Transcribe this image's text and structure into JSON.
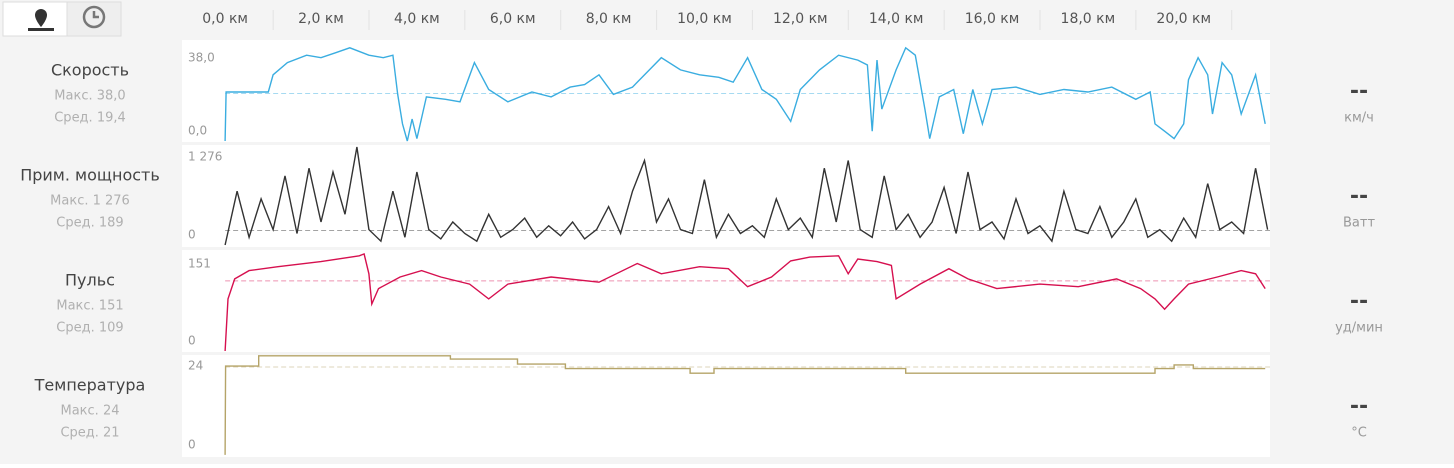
{
  "x_axis": {
    "xlim": [
      -0.9,
      21.8
    ],
    "xticks": [
      {
        "value": 0,
        "label": "0,0 км"
      },
      {
        "value": 2,
        "label": "2,0 км"
      },
      {
        "value": 4,
        "label": "4,0 км"
      },
      {
        "value": 6,
        "label": "6,0 км"
      },
      {
        "value": 8,
        "label": "8,0 км"
      },
      {
        "value": 10,
        "label": "10,0 км"
      },
      {
        "value": 12,
        "label": "12,0 км"
      },
      {
        "value": 14,
        "label": "14,0 км"
      },
      {
        "value": 16,
        "label": "16,0 км"
      },
      {
        "value": 18,
        "label": "18,0 км"
      },
      {
        "value": 20,
        "label": "20,0 км"
      }
    ]
  },
  "chart_data": [
    {
      "type": "line",
      "title": "Скорость",
      "max_label": "Макс. 38,0",
      "avg_label": "Сред. 19,4",
      "current": "--",
      "unit": "км/ч",
      "color": "#3aade0",
      "ylim": [
        -0.4,
        41.2
      ],
      "yticks": [
        {
          "value": 38,
          "label": "38,0"
        },
        {
          "value": 0,
          "label": "0,0"
        }
      ],
      "average": 19.4,
      "x": [
        0,
        0.02,
        0.9,
        1.0,
        1.3,
        1.7,
        2.0,
        2.3,
        2.6,
        3.0,
        3.3,
        3.5,
        3.6,
        3.7,
        3.8,
        3.9,
        4.0,
        4.2,
        4.6,
        4.9,
        5.2,
        5.5,
        5.9,
        6.4,
        6.8,
        7.2,
        7.5,
        7.8,
        8.1,
        8.5,
        8.9,
        9.1,
        9.5,
        9.9,
        10.3,
        10.6,
        10.9,
        11.2,
        11.5,
        11.8,
        12.0,
        12.4,
        12.8,
        13.2,
        13.4,
        13.5,
        13.6,
        13.7,
        14.0,
        14.2,
        14.4,
        14.6,
        14.7,
        14.9,
        15.2,
        15.4,
        15.6,
        15.8,
        16.0,
        16.5,
        17.0,
        17.5,
        18.0,
        18.5,
        19.0,
        19.3,
        19.4,
        19.6,
        19.8,
        20.0,
        20.1,
        20.3,
        20.5,
        20.6,
        20.8,
        21.0,
        21.2,
        21.5,
        21.7
      ],
      "values": [
        0,
        20,
        20,
        27,
        32,
        35,
        34,
        36,
        38,
        35,
        34,
        35,
        19,
        7,
        0,
        9,
        1,
        18,
        17,
        16,
        32,
        21,
        16,
        20,
        18,
        22,
        23,
        27,
        19,
        22,
        30,
        34,
        29,
        27,
        26,
        24,
        34,
        21,
        17,
        8,
        21,
        29,
        35,
        33,
        31,
        4,
        33,
        13,
        29,
        38,
        35,
        13,
        1,
        18,
        21,
        3,
        21,
        7,
        21,
        22,
        19,
        21,
        20,
        22,
        17,
        20,
        7,
        4,
        1,
        7,
        25,
        34,
        27,
        11,
        32,
        27,
        11,
        27,
        7
      ]
    },
    {
      "type": "line",
      "title": "Прим. мощность",
      "max_label": "Макс. 1 276",
      "avg_label": "Сред. 189",
      "current": "--",
      "unit": "Ватт",
      "color": "#333333",
      "ylim": [
        -26,
        1302
      ],
      "yticks": [
        {
          "value": 1276,
          "label": "1 276"
        },
        0
      ],
      "average": 189,
      "x": [
        0,
        0.25,
        0.5,
        0.75,
        1,
        1.25,
        1.5,
        1.75,
        2,
        2.25,
        2.5,
        2.75,
        3,
        3.25,
        3.5,
        3.75,
        4,
        4.25,
        4.5,
        4.75,
        5,
        5.25,
        5.5,
        5.75,
        6,
        6.25,
        6.5,
        6.75,
        7,
        7.25,
        7.5,
        7.75,
        8,
        8.25,
        8.5,
        8.75,
        9,
        9.25,
        9.5,
        9.75,
        10,
        10.25,
        10.5,
        10.75,
        11,
        11.25,
        11.5,
        11.75,
        12,
        12.25,
        12.5,
        12.75,
        13,
        13.25,
        13.5,
        13.75,
        14,
        14.25,
        14.5,
        14.75,
        15,
        15.25,
        15.5,
        15.75,
        16,
        16.25,
        16.5,
        16.75,
        17,
        17.25,
        17.5,
        17.75,
        18,
        18.25,
        18.5,
        18.75,
        19,
        19.25,
        19.5,
        19.75,
        20,
        20.25,
        20.5,
        20.75,
        21,
        21.25,
        21.5,
        21.75
      ],
      "values": [
        0,
        700,
        100,
        600,
        200,
        900,
        150,
        1000,
        300,
        950,
        400,
        1276,
        200,
        50,
        700,
        100,
        950,
        200,
        80,
        300,
        150,
        50,
        400,
        100,
        200,
        350,
        100,
        250,
        120,
        300,
        80,
        200,
        500,
        150,
        700,
        1100,
        300,
        600,
        200,
        150,
        850,
        100,
        400,
        150,
        250,
        100,
        600,
        200,
        350,
        100,
        1000,
        300,
        1100,
        200,
        100,
        900,
        200,
        400,
        100,
        300,
        750,
        150,
        950,
        200,
        300,
        80,
        600,
        150,
        250,
        50,
        700,
        200,
        150,
        500,
        100,
        300,
        600,
        100,
        200,
        50,
        350,
        100,
        800,
        200,
        300,
        150,
        1000,
        200
      ]
    },
    {
      "type": "line",
      "title": "Пульс",
      "max_label": "Макс. 151",
      "avg_label": "Сред. 109",
      "current": "--",
      "unit": "уд/мин",
      "color": "#d6104f",
      "ylim": [
        -1.6,
        157
      ],
      "yticks": [
        151,
        0
      ],
      "average": 109,
      "x": [
        0,
        0.06,
        0.2,
        0.5,
        1.1,
        2.0,
        2.8,
        2.9,
        3.0,
        3.06,
        3.2,
        3.65,
        4.1,
        4.5,
        5.1,
        5.5,
        5.9,
        6.8,
        7.8,
        8.6,
        9.1,
        9.9,
        10.5,
        10.9,
        11.4,
        11.8,
        12.2,
        12.8,
        13.0,
        13.2,
        13.6,
        13.9,
        14.0,
        14.5,
        15.1,
        15.5,
        16.1,
        17.0,
        17.8,
        18.6,
        19.1,
        19.4,
        19.6,
        19.8,
        20.1,
        20.7,
        21.2,
        21.5,
        21.7
      ],
      "values": [
        0,
        81,
        112,
        125,
        131,
        139,
        148,
        151,
        120,
        73,
        97,
        115,
        125,
        115,
        104,
        81,
        104,
        115,
        107,
        136,
        120,
        131,
        128,
        100,
        115,
        140,
        146,
        148,
        120,
        143,
        139,
        133,
        81,
        104,
        128,
        112,
        97,
        104,
        100,
        112,
        97,
        81,
        65,
        81,
        104,
        115,
        125,
        120,
        97
      ]
    },
    {
      "type": "line",
      "title": "Температура",
      "max_label": "Макс. 24",
      "avg_label": "Сред. 21",
      "current": "--",
      "unit": "°C",
      "color": "#b5a468",
      "ylim": [
        -0.5,
        24.2
      ],
      "yticks": [
        24,
        0
      ],
      "average": 21.3,
      "x": [
        0,
        0.01,
        0.7,
        0.7,
        4.7,
        4.7,
        6.1,
        6.1,
        7.1,
        7.1,
        9.7,
        9.7,
        10.2,
        10.2,
        14.2,
        14.2,
        19.4,
        19.4,
        19.8,
        19.8,
        20.2,
        20.2,
        21.7
      ],
      "values": [
        0,
        21.5,
        21.5,
        24,
        24,
        23.2,
        23.2,
        22,
        22,
        20.9,
        20.9,
        19.8,
        19.8,
        20.9,
        20.9,
        19.8,
        19.8,
        20.9,
        20.9,
        21.8,
        21.8,
        20.9,
        20.9
      ]
    }
  ]
}
